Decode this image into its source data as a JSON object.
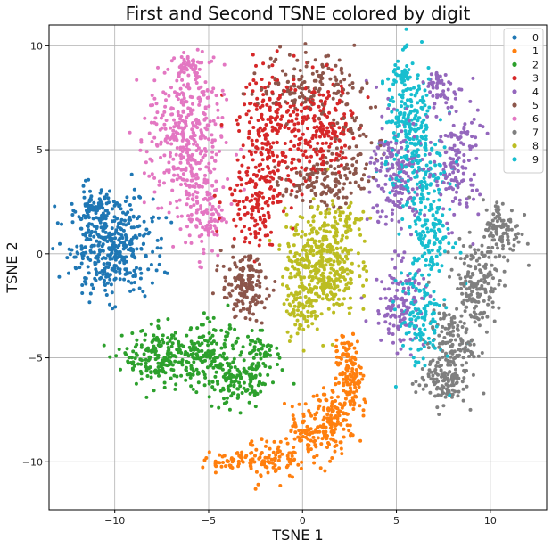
{
  "chart_data": {
    "type": "scatter",
    "title": "First and Second TSNE colored by digit",
    "xlabel": "TSNE 1",
    "ylabel": "TSNE 2",
    "xlim": [
      -13.5,
      13
    ],
    "ylim": [
      -12.3,
      11
    ],
    "x_ticks": [
      -10,
      -5,
      0,
      5,
      10
    ],
    "y_ticks": [
      -10,
      -5,
      0,
      5,
      10
    ],
    "grid": true,
    "legend_position": "top-right",
    "series": [
      {
        "name": "0",
        "color": "#1f77b4",
        "clusters": [
          {
            "cx": -10.2,
            "cy": 0.4,
            "sx": 1.3,
            "sy": 1.35,
            "n": 420
          },
          {
            "cx": -11.2,
            "cy": 2.3,
            "sx": 0.6,
            "sy": 0.5,
            "n": 60
          }
        ]
      },
      {
        "name": "1",
        "color": "#ff7f0e",
        "clusters": [
          {
            "cx": -3.8,
            "cy": -10.0,
            "sx": 0.8,
            "sy": 0.25,
            "n": 50
          },
          {
            "cx": -1.6,
            "cy": -9.9,
            "sx": 0.9,
            "sy": 0.55,
            "n": 80
          },
          {
            "cx": 0.3,
            "cy": -8.9,
            "sx": 1.0,
            "sy": 0.7,
            "n": 110
          },
          {
            "cx": 1.8,
            "cy": -7.7,
            "sx": 0.8,
            "sy": 0.75,
            "n": 110
          },
          {
            "cx": 2.6,
            "cy": -5.9,
            "sx": 0.45,
            "sy": 0.8,
            "n": 90
          },
          {
            "cx": 2.3,
            "cy": -4.6,
            "sx": 0.35,
            "sy": 0.5,
            "n": 40
          }
        ]
      },
      {
        "name": "2",
        "color": "#2ca02c",
        "clusters": [
          {
            "cx": -7.5,
            "cy": -5.0,
            "sx": 1.2,
            "sy": 0.8,
            "n": 200
          },
          {
            "cx": -5.0,
            "cy": -5.0,
            "sx": 1.0,
            "sy": 0.9,
            "n": 160
          },
          {
            "cx": -3.2,
            "cy": -6.3,
            "sx": 0.9,
            "sy": 0.7,
            "n": 110
          },
          {
            "cx": -2.3,
            "cy": -4.7,
            "sx": 0.6,
            "sy": 0.5,
            "n": 50
          }
        ]
      },
      {
        "name": "3",
        "color": "#d62728",
        "clusters": [
          {
            "cx": -1.7,
            "cy": 5.8,
            "sx": 1.0,
            "sy": 1.8,
            "n": 220
          },
          {
            "cx": 0.6,
            "cy": 5.9,
            "sx": 0.9,
            "sy": 1.5,
            "n": 140
          },
          {
            "cx": -2.6,
            "cy": 2.3,
            "sx": 0.9,
            "sy": 1.1,
            "n": 110
          },
          {
            "cx": 1.8,
            "cy": 6.3,
            "sx": 0.6,
            "sy": 1.2,
            "n": 50
          }
        ]
      },
      {
        "name": "4",
        "color": "#9467bd",
        "clusters": [
          {
            "cx": 5.0,
            "cy": 3.7,
            "sx": 0.8,
            "sy": 1.7,
            "n": 180
          },
          {
            "cx": 8.2,
            "cy": 4.5,
            "sx": 0.7,
            "sy": 1.7,
            "n": 140
          },
          {
            "cx": 5.2,
            "cy": -2.5,
            "sx": 0.8,
            "sy": 1.2,
            "n": 120
          },
          {
            "cx": 7.2,
            "cy": 8.0,
            "sx": 0.5,
            "sy": 0.6,
            "n": 50
          }
        ]
      },
      {
        "name": "5",
        "color": "#8c564b",
        "clusters": [
          {
            "cx": -3.1,
            "cy": -1.6,
            "sx": 0.7,
            "sy": 0.9,
            "n": 150
          },
          {
            "cx": 1.0,
            "cy": 3.5,
            "sx": 1.2,
            "sy": 0.7,
            "n": 130
          },
          {
            "cx": 0.3,
            "cy": 8.2,
            "sx": 1.5,
            "sy": 0.9,
            "n": 130
          },
          {
            "cx": 2.8,
            "cy": 5.7,
            "sx": 0.9,
            "sy": 1.4,
            "n": 60
          }
        ]
      },
      {
        "name": "6",
        "color": "#e377c2",
        "clusters": [
          {
            "cx": -6.2,
            "cy": 5.5,
            "sx": 1.2,
            "sy": 2.1,
            "n": 380
          },
          {
            "cx": -5.2,
            "cy": 2.0,
            "sx": 0.6,
            "sy": 1.3,
            "n": 110
          },
          {
            "cx": -6.1,
            "cy": 9.1,
            "sx": 0.5,
            "sy": 0.4,
            "n": 40
          }
        ]
      },
      {
        "name": "7",
        "color": "#7f7f7f",
        "clusters": [
          {
            "cx": 10.6,
            "cy": 1.1,
            "sx": 0.6,
            "sy": 0.9,
            "n": 110
          },
          {
            "cx": 9.2,
            "cy": -1.5,
            "sx": 0.7,
            "sy": 1.2,
            "n": 160
          },
          {
            "cx": 7.9,
            "cy": -4.4,
            "sx": 0.7,
            "sy": 1.0,
            "n": 130
          },
          {
            "cx": 7.4,
            "cy": -6.2,
            "sx": 0.8,
            "sy": 0.6,
            "n": 100
          }
        ]
      },
      {
        "name": "8",
        "color": "#bcbd22",
        "clusters": [
          {
            "cx": 1.0,
            "cy": -0.5,
            "sx": 1.1,
            "sy": 1.5,
            "n": 420
          },
          {
            "cx": -0.2,
            "cy": -2.8,
            "sx": 0.5,
            "sy": 0.7,
            "n": 60
          },
          {
            "cx": 2.2,
            "cy": 1.6,
            "sx": 0.7,
            "sy": 0.6,
            "n": 50
          }
        ]
      },
      {
        "name": "9",
        "color": "#17becf",
        "clusters": [
          {
            "cx": 5.8,
            "cy": 5.8,
            "sx": 0.8,
            "sy": 1.9,
            "n": 260
          },
          {
            "cx": 6.8,
            "cy": 1.2,
            "sx": 0.7,
            "sy": 1.8,
            "n": 170
          },
          {
            "cx": 6.3,
            "cy": -3.2,
            "sx": 0.7,
            "sy": 1.4,
            "n": 120
          },
          {
            "cx": 5.2,
            "cy": 8.6,
            "sx": 0.4,
            "sy": 0.4,
            "n": 30
          }
        ]
      }
    ]
  }
}
